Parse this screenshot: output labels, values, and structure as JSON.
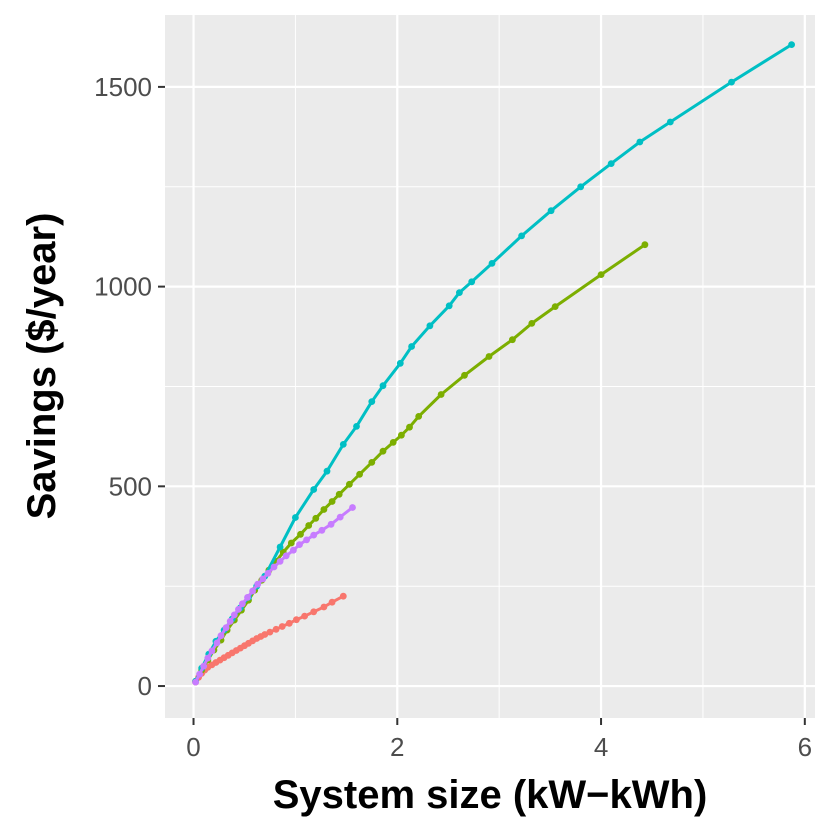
{
  "chart_data": {
    "type": "line",
    "title": "",
    "xlabel": "System size (kW−kWh)",
    "ylabel": "Savings ($/year)",
    "xlim": [
      -0.28,
      6.1
    ],
    "ylim": [
      -80,
      1680
    ],
    "x_ticks": [
      0,
      2,
      4,
      6
    ],
    "y_ticks": [
      0,
      500,
      1000,
      1500
    ],
    "x_tick_labels": [
      "0",
      "2",
      "4",
      "6"
    ],
    "y_tick_labels": [
      "0",
      "500",
      "1000",
      "1500"
    ],
    "grid": true,
    "legend": "none",
    "panel_background": "#ebebeb",
    "series": [
      {
        "color": "#f8766d",
        "points": [
          [
            0.02,
            10
          ],
          [
            0.05,
            22
          ],
          [
            0.08,
            32
          ],
          [
            0.11,
            40
          ],
          [
            0.14,
            47
          ],
          [
            0.18,
            53
          ],
          [
            0.22,
            59
          ],
          [
            0.26,
            65
          ],
          [
            0.3,
            71
          ],
          [
            0.34,
            77
          ],
          [
            0.38,
            83
          ],
          [
            0.42,
            89
          ],
          [
            0.46,
            95
          ],
          [
            0.5,
            101
          ],
          [
            0.54,
            107
          ],
          [
            0.58,
            113
          ],
          [
            0.62,
            119
          ],
          [
            0.66,
            124
          ],
          [
            0.7,
            129
          ],
          [
            0.75,
            135
          ],
          [
            0.81,
            142
          ],
          [
            0.87,
            149
          ],
          [
            0.94,
            157
          ],
          [
            1.01,
            166
          ],
          [
            1.09,
            175
          ],
          [
            1.18,
            186
          ],
          [
            1.28,
            198
          ],
          [
            1.36,
            210
          ],
          [
            1.47,
            225
          ]
        ]
      },
      {
        "color": "#7cae00",
        "points": [
          [
            0.02,
            12
          ],
          [
            0.08,
            40
          ],
          [
            0.14,
            65
          ],
          [
            0.2,
            90
          ],
          [
            0.27,
            115
          ],
          [
            0.33,
            140
          ],
          [
            0.4,
            165
          ],
          [
            0.47,
            190
          ],
          [
            0.54,
            215
          ],
          [
            0.6,
            240
          ],
          [
            0.67,
            265
          ],
          [
            0.74,
            290
          ],
          [
            0.81,
            312
          ],
          [
            0.88,
            335
          ],
          [
            0.96,
            358
          ],
          [
            1.05,
            380
          ],
          [
            1.13,
            402
          ],
          [
            1.2,
            420
          ],
          [
            1.28,
            442
          ],
          [
            1.36,
            462
          ],
          [
            1.43,
            480
          ],
          [
            1.53,
            505
          ],
          [
            1.63,
            530
          ],
          [
            1.75,
            560
          ],
          [
            1.86,
            588
          ],
          [
            1.96,
            610
          ],
          [
            2.04,
            628
          ],
          [
            2.12,
            648
          ],
          [
            2.21,
            675
          ],
          [
            2.43,
            730
          ],
          [
            2.66,
            778
          ],
          [
            2.9,
            825
          ],
          [
            3.13,
            867
          ],
          [
            3.32,
            908
          ],
          [
            3.55,
            950
          ],
          [
            4.0,
            1030
          ],
          [
            4.43,
            1105
          ]
        ]
      },
      {
        "color": "#00bfc4",
        "points": [
          [
            0.02,
            12
          ],
          [
            0.08,
            45
          ],
          [
            0.15,
            80
          ],
          [
            0.22,
            112
          ],
          [
            0.3,
            140
          ],
          [
            0.38,
            168
          ],
          [
            0.46,
            196
          ],
          [
            0.54,
            222
          ],
          [
            0.62,
            250
          ],
          [
            0.7,
            275
          ],
          [
            0.85,
            348
          ],
          [
            1.0,
            422
          ],
          [
            1.18,
            492
          ],
          [
            1.31,
            538
          ],
          [
            1.47,
            605
          ],
          [
            1.6,
            650
          ],
          [
            1.75,
            712
          ],
          [
            1.86,
            752
          ],
          [
            2.03,
            808
          ],
          [
            2.14,
            850
          ],
          [
            2.32,
            902
          ],
          [
            2.51,
            952
          ],
          [
            2.61,
            985
          ],
          [
            2.73,
            1012
          ],
          [
            2.93,
            1058
          ],
          [
            3.22,
            1127
          ],
          [
            3.51,
            1190
          ],
          [
            3.8,
            1250
          ],
          [
            4.1,
            1308
          ],
          [
            4.38,
            1362
          ],
          [
            4.68,
            1412
          ],
          [
            5.28,
            1512
          ],
          [
            5.87,
            1606
          ]
        ]
      },
      {
        "color": "#c77cff",
        "points": [
          [
            0.02,
            10
          ],
          [
            0.06,
            30
          ],
          [
            0.1,
            50
          ],
          [
            0.14,
            70
          ],
          [
            0.18,
            88
          ],
          [
            0.23,
            108
          ],
          [
            0.27,
            126
          ],
          [
            0.32,
            146
          ],
          [
            0.36,
            162
          ],
          [
            0.4,
            178
          ],
          [
            0.44,
            192
          ],
          [
            0.48,
            206
          ],
          [
            0.53,
            222
          ],
          [
            0.58,
            238
          ],
          [
            0.63,
            255
          ],
          [
            0.68,
            268
          ],
          [
            0.73,
            282
          ],
          [
            0.79,
            298
          ],
          [
            0.85,
            312
          ],
          [
            0.91,
            326
          ],
          [
            0.98,
            340
          ],
          [
            1.04,
            354
          ],
          [
            1.11,
            366
          ],
          [
            1.18,
            378
          ],
          [
            1.26,
            390
          ],
          [
            1.35,
            405
          ],
          [
            1.44,
            423
          ],
          [
            1.56,
            447
          ]
        ]
      }
    ]
  }
}
